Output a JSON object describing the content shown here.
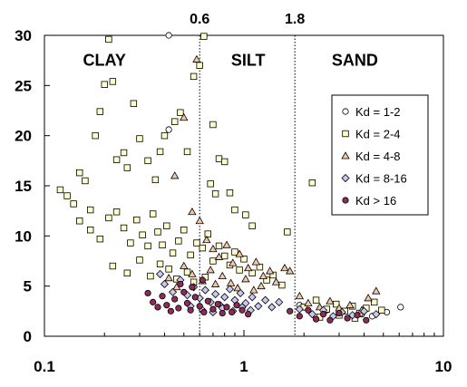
{
  "chart_data": {
    "type": "scatter",
    "x_scale": "log",
    "xlim": [
      0.1,
      10
    ],
    "ylim": [
      0,
      30
    ],
    "x_ticks": [
      "0.1",
      "1",
      "10"
    ],
    "y_ticks": [
      "0",
      "5",
      "10",
      "15",
      "20",
      "25",
      "30"
    ],
    "boundaries": [
      {
        "value": 0.6,
        "label": "0.6"
      },
      {
        "value": 1.8,
        "label": "1.8"
      }
    ],
    "zones": [
      {
        "label": "CLAY",
        "x": 0.2,
        "y": 27.5
      },
      {
        "label": "SILT",
        "x": 1.05,
        "y": 27.5
      },
      {
        "label": "SAND",
        "x": 3.6,
        "y": 27.5
      }
    ],
    "legend_position": "right",
    "series": [
      {
        "name": "Kd = 1-2",
        "marker": "circle",
        "color": "#ffffff",
        "points": [
          [
            0.42,
            30
          ],
          [
            0.42,
            20.6
          ],
          [
            5.2,
            2.4
          ],
          [
            6.1,
            2.9
          ],
          [
            3.9,
            2.2
          ],
          [
            4.4,
            2.0
          ],
          [
            1.9,
            3.1
          ],
          [
            2.6,
            2.6
          ]
        ]
      },
      {
        "name": "Kd = 2-4",
        "marker": "square",
        "color": "#ffffcc",
        "points": [
          [
            0.12,
            14.6
          ],
          [
            0.13,
            14.0
          ],
          [
            0.14,
            13.2
          ],
          [
            0.15,
            16.3
          ],
          [
            0.16,
            15.5
          ],
          [
            0.17,
            12.6
          ],
          [
            0.18,
            20.0
          ],
          [
            0.19,
            22.4
          ],
          [
            0.2,
            25.1
          ],
          [
            0.21,
            29.6
          ],
          [
            0.22,
            25.4
          ],
          [
            0.23,
            17.6
          ],
          [
            0.25,
            18.3
          ],
          [
            0.26,
            16.8
          ],
          [
            0.28,
            23.2
          ],
          [
            0.3,
            19.7
          ],
          [
            0.33,
            17.5
          ],
          [
            0.36,
            15.6
          ],
          [
            0.38,
            18.4
          ],
          [
            0.4,
            20.0
          ],
          [
            0.45,
            21.4
          ],
          [
            0.48,
            22.3
          ],
          [
            0.52,
            18.4
          ],
          [
            0.56,
            25.9
          ],
          [
            0.6,
            27.0
          ],
          [
            0.63,
            29.9
          ],
          [
            0.7,
            21.1
          ],
          [
            0.75,
            17.7
          ],
          [
            0.8,
            17.4
          ],
          [
            0.68,
            15.2
          ],
          [
            0.72,
            14.2
          ],
          [
            0.85,
            14.3
          ],
          [
            0.9,
            12.6
          ],
          [
            1.02,
            12.1
          ],
          [
            1.1,
            11.0
          ],
          [
            1.65,
            10.4
          ],
          [
            2.2,
            15.3
          ],
          [
            0.15,
            11.5
          ],
          [
            0.17,
            10.6
          ],
          [
            0.19,
            9.7
          ],
          [
            0.21,
            11.8
          ],
          [
            0.23,
            12.4
          ],
          [
            0.25,
            10.8
          ],
          [
            0.27,
            9.3
          ],
          [
            0.29,
            11.6
          ],
          [
            0.31,
            10.1
          ],
          [
            0.33,
            9.0
          ],
          [
            0.35,
            12.2
          ],
          [
            0.37,
            10.4
          ],
          [
            0.39,
            9.1
          ],
          [
            0.41,
            11.0
          ],
          [
            0.44,
            8.3
          ],
          [
            0.47,
            9.5
          ],
          [
            0.5,
            10.6
          ],
          [
            0.54,
            8.1
          ],
          [
            0.58,
            9.3
          ],
          [
            0.62,
            8.8
          ],
          [
            0.66,
            10.2
          ],
          [
            0.7,
            7.5
          ],
          [
            0.75,
            9.0
          ],
          [
            0.8,
            8.0
          ],
          [
            0.85,
            7.1
          ],
          [
            0.9,
            8.4
          ],
          [
            0.95,
            6.6
          ],
          [
            1.0,
            7.7
          ],
          [
            1.1,
            6.3
          ],
          [
            1.2,
            6.9
          ],
          [
            1.3,
            5.6
          ],
          [
            1.4,
            6.1
          ],
          [
            1.55,
            5.1
          ],
          [
            0.22,
            7.0
          ],
          [
            0.26,
            6.3
          ],
          [
            0.3,
            7.6
          ],
          [
            0.34,
            6.0
          ],
          [
            0.38,
            7.2
          ],
          [
            0.42,
            6.7
          ],
          [
            0.46,
            5.7
          ],
          [
            0.52,
            6.4
          ],
          [
            0.56,
            5.4
          ],
          [
            0.64,
            5.9
          ],
          [
            2.0,
            2.9
          ],
          [
            2.3,
            3.6
          ],
          [
            2.6,
            2.7
          ],
          [
            2.9,
            3.2
          ],
          [
            3.2,
            2.5
          ],
          [
            3.5,
            3.0
          ],
          [
            3.8,
            2.3
          ],
          [
            4.1,
            2.8
          ],
          [
            4.5,
            3.4
          ],
          [
            4.9,
            2.6
          ],
          [
            2.4,
            1.9
          ],
          [
            3.0,
            2.1
          ],
          [
            3.6,
            1.8
          ]
        ]
      },
      {
        "name": "Kd = 4-8",
        "marker": "triangle",
        "color": "#f4c7a5",
        "points": [
          [
            0.58,
            27.6
          ],
          [
            0.5,
            21.8
          ],
          [
            0.45,
            16.0
          ],
          [
            0.55,
            12.4
          ],
          [
            0.6,
            11.5
          ],
          [
            0.65,
            9.6
          ],
          [
            0.7,
            8.7
          ],
          [
            0.75,
            7.9
          ],
          [
            0.82,
            9.1
          ],
          [
            0.88,
            7.3
          ],
          [
            0.95,
            8.2
          ],
          [
            1.05,
            6.8
          ],
          [
            1.15,
            7.4
          ],
          [
            1.25,
            6.0
          ],
          [
            1.35,
            6.5
          ],
          [
            1.45,
            5.4
          ],
          [
            1.6,
            6.8
          ],
          [
            1.7,
            6.5
          ],
          [
            0.5,
            7.0
          ],
          [
            0.55,
            6.2
          ],
          [
            0.62,
            5.5
          ],
          [
            0.68,
            6.6
          ],
          [
            0.72,
            5.2
          ],
          [
            0.78,
            6.0
          ],
          [
            0.86,
            5.3
          ],
          [
            0.93,
            4.8
          ],
          [
            1.02,
            5.7
          ],
          [
            1.12,
            4.6
          ],
          [
            1.22,
            5.0
          ],
          [
            0.42,
            5.8
          ],
          [
            0.46,
            4.9
          ],
          [
            1.9,
            4.0
          ],
          [
            2.1,
            3.3
          ],
          [
            2.4,
            2.9
          ],
          [
            2.7,
            3.5
          ],
          [
            3.0,
            2.8
          ],
          [
            3.4,
            3.1
          ],
          [
            3.9,
            2.6
          ],
          [
            4.2,
            3.8
          ],
          [
            4.6,
            4.5
          ]
        ]
      },
      {
        "name": "Kd = 8-16",
        "marker": "diamond",
        "color": "#c8c8f0",
        "points": [
          [
            0.38,
            6.2
          ],
          [
            0.4,
            5.2
          ],
          [
            0.44,
            4.4
          ],
          [
            0.48,
            5.6
          ],
          [
            0.52,
            4.1
          ],
          [
            0.56,
            4.9
          ],
          [
            0.6,
            3.8
          ],
          [
            0.64,
            4.6
          ],
          [
            0.68,
            3.4
          ],
          [
            0.72,
            4.2
          ],
          [
            0.76,
            3.1
          ],
          [
            0.8,
            3.9
          ],
          [
            0.85,
            4.7
          ],
          [
            0.9,
            3.6
          ],
          [
            0.96,
            4.3
          ],
          [
            1.02,
            3.3
          ],
          [
            1.1,
            3.9
          ],
          [
            1.18,
            3.0
          ],
          [
            1.28,
            3.6
          ],
          [
            1.38,
            2.9
          ],
          [
            1.5,
            3.4
          ],
          [
            0.54,
            3.0
          ],
          [
            0.62,
            2.6
          ],
          [
            0.7,
            2.4
          ],
          [
            0.78,
            2.8
          ],
          [
            0.88,
            2.5
          ],
          [
            0.98,
            2.9
          ],
          [
            1.08,
            2.6
          ],
          [
            1.9,
            2.7
          ],
          [
            2.2,
            2.2
          ],
          [
            2.5,
            2.6
          ],
          [
            2.8,
            2.0
          ],
          [
            3.1,
            2.4
          ],
          [
            3.5,
            2.1
          ],
          [
            4.0,
            2.5
          ],
          [
            4.6,
            2.2
          ]
        ]
      },
      {
        "name": "Kd > 16",
        "marker": "circle",
        "color": "#8e2b56",
        "points": [
          [
            0.33,
            4.3
          ],
          [
            0.35,
            3.4
          ],
          [
            0.37,
            2.9
          ],
          [
            0.39,
            4.0
          ],
          [
            0.41,
            3.1
          ],
          [
            0.43,
            2.5
          ],
          [
            0.45,
            3.7
          ],
          [
            0.47,
            2.8
          ],
          [
            0.5,
            4.4
          ],
          [
            0.52,
            3.3
          ],
          [
            0.54,
            2.6
          ],
          [
            0.57,
            3.9
          ],
          [
            0.6,
            3.0
          ],
          [
            0.63,
            2.4
          ],
          [
            0.66,
            3.5
          ],
          [
            0.7,
            2.7
          ],
          [
            0.74,
            3.2
          ],
          [
            0.78,
            2.3
          ],
          [
            0.82,
            2.9
          ],
          [
            0.87,
            2.4
          ],
          [
            0.92,
            3.1
          ],
          [
            0.98,
            2.6
          ],
          [
            1.05,
            2.2
          ],
          [
            0.48,
            5.2
          ],
          [
            0.55,
            4.9
          ],
          [
            0.62,
            5.6
          ],
          [
            1.7,
            2.5
          ],
          [
            1.9,
            2.0
          ],
          [
            2.1,
            2.6
          ],
          [
            2.3,
            1.7
          ],
          [
            2.5,
            2.2
          ],
          [
            2.7,
            1.6
          ],
          [
            3.0,
            2.3
          ],
          [
            3.3,
            1.8
          ],
          [
            3.7,
            2.1
          ],
          [
            4.1,
            1.6
          ]
        ]
      }
    ]
  }
}
